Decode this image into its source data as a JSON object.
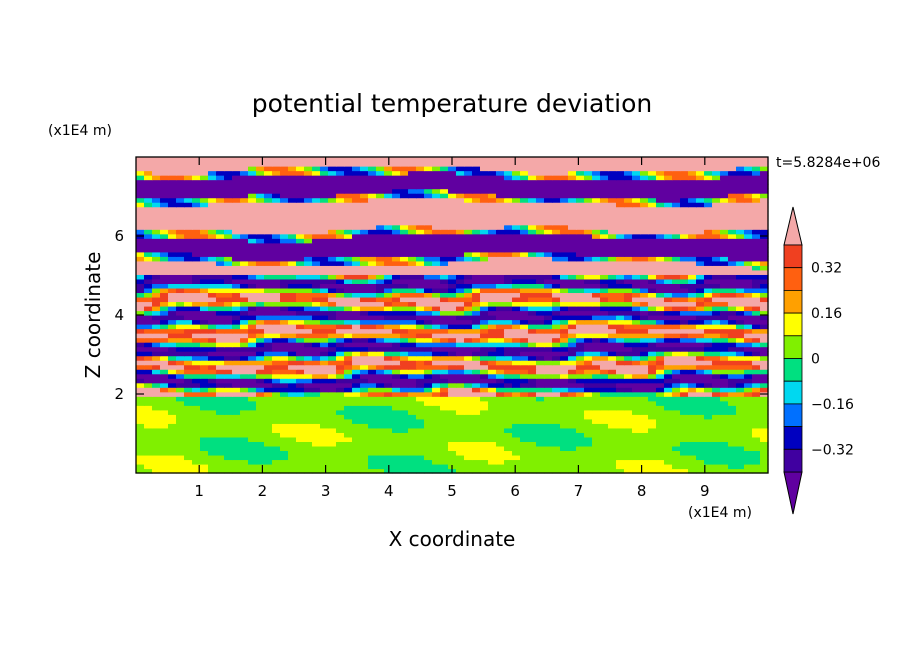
{
  "chart_data": {
    "type": "heatmap",
    "title": "potential temperature deviation",
    "xlabel": "X coordinate",
    "ylabel": "Z coordinate",
    "x_unit": "(x1E4 m)",
    "y_unit": "(x1E4 m)",
    "time_label": "t=5.8284e+06",
    "xlim": [
      0,
      10
    ],
    "ylim": [
      0,
      8
    ],
    "x_ticks": [
      1,
      2,
      3,
      4,
      5,
      6,
      7,
      8,
      9
    ],
    "y_ticks": [
      2,
      4,
      6
    ],
    "colorbar": {
      "ticks": [
        {
          "value": 0.32,
          "label": "0.32"
        },
        {
          "value": 0.16,
          "label": "0.16"
        },
        {
          "value": 0,
          "label": "0"
        },
        {
          "value": -0.16,
          "label": "−0.16"
        },
        {
          "value": -0.32,
          "label": "−0.32"
        }
      ],
      "levels": [
        {
          "lo": 0.32,
          "hi": 0.4,
          "color": "#f04020"
        },
        {
          "lo": 0.24,
          "hi": 0.32,
          "color": "#ff6010"
        },
        {
          "lo": 0.16,
          "hi": 0.24,
          "color": "#ffa000"
        },
        {
          "lo": 0.08,
          "hi": 0.16,
          "color": "#ffff00"
        },
        {
          "lo": 0.0,
          "hi": 0.08,
          "color": "#80f000"
        },
        {
          "lo": -0.08,
          "hi": 0.0,
          "color": "#00e080"
        },
        {
          "lo": -0.16,
          "hi": -0.08,
          "color": "#00d8f0"
        },
        {
          "lo": -0.24,
          "hi": -0.16,
          "color": "#0070ff"
        },
        {
          "lo": -0.32,
          "hi": -0.24,
          "color": "#0000c0"
        },
        {
          "lo": -0.4,
          "hi": -0.32,
          "color": "#4000a0"
        }
      ],
      "over_color": "#f4a8a8",
      "under_color": "#6000a0"
    }
  }
}
